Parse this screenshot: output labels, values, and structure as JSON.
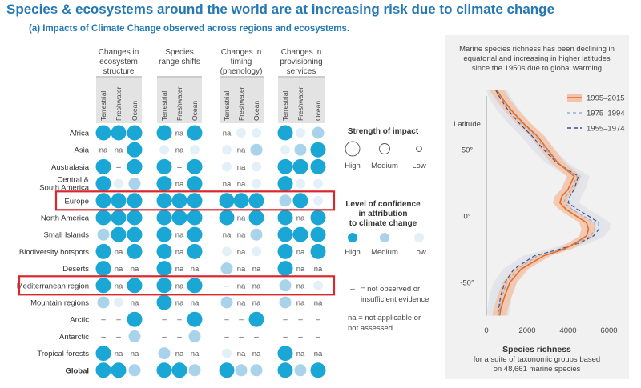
{
  "title": "Species & ecosystems around the world are at increasing risk due to climate change",
  "subtitle": "(a) Impacts of Climate Change observed across regions and ecosystems.",
  "colors": {
    "high": "#1aa7d6",
    "medium": "#a9d3ea",
    "low": "#e4f0f8",
    "title": "#2479b5",
    "highlight": "#d8282e"
  },
  "matrix": {
    "groups": [
      {
        "label_lines": [
          "Changes in",
          "ecosystem",
          "structure"
        ]
      },
      {
        "label_lines": [
          "Species",
          "range shifts"
        ]
      },
      {
        "label_lines": [
          "Changes in",
          "timing",
          "(phenology)"
        ]
      },
      {
        "label_lines": [
          "Changes in",
          "provisioning",
          "services"
        ]
      }
    ],
    "subcolumns": [
      "Terrestrial",
      "Freshwater",
      "Ocean"
    ],
    "na_label": "na",
    "dash_label": "–",
    "rows": [
      {
        "label": [
          "Africa"
        ],
        "cells": [
          "H",
          "H",
          "H",
          "H",
          "na",
          "H",
          "na",
          "L",
          "L",
          "H",
          "L",
          "M"
        ]
      },
      {
        "label": [
          "Asia"
        ],
        "cells": [
          "na",
          "na",
          "H",
          "L",
          "na",
          "L",
          "L",
          "na",
          "M",
          "L",
          "M",
          "H"
        ]
      },
      {
        "label": [
          "Australasia"
        ],
        "cells": [
          "H",
          "-",
          "H",
          "H",
          "-",
          "H",
          "L",
          "na",
          "L",
          "H",
          "H",
          "H"
        ]
      },
      {
        "label": [
          "Central &",
          "South America"
        ],
        "cells": [
          "H",
          "L",
          "M",
          "H",
          "na",
          "H",
          "na",
          "na",
          "L",
          "H",
          "L",
          "L"
        ]
      },
      {
        "label": [
          "Europe"
        ],
        "cells": [
          "H",
          "H",
          "H",
          "H",
          "H",
          "H",
          "H",
          "H",
          "H",
          "M",
          "H",
          "L"
        ]
      },
      {
        "label": [
          "North America"
        ],
        "cells": [
          "H",
          "H",
          "H",
          "H",
          "H",
          "H",
          "H",
          "na",
          "H",
          "H",
          "na",
          "H"
        ]
      },
      {
        "label": [
          "Small Islands"
        ],
        "cells": [
          "M",
          "H",
          "H",
          "H",
          "na",
          "H",
          "na",
          "na",
          "M",
          "H",
          "H",
          "H"
        ]
      },
      {
        "label": [
          "Biodiversity hotspots"
        ],
        "cells": [
          "H",
          "na",
          "H",
          "H",
          "na",
          "H",
          "L",
          "na",
          "L",
          "H",
          "na",
          "H"
        ]
      },
      {
        "label": [
          "Deserts"
        ],
        "cells": [
          "H",
          "na",
          "na",
          "H",
          "na",
          "na",
          "M",
          "na",
          "na",
          "H",
          "na",
          "na"
        ]
      },
      {
        "label": [
          "Mediterranean region"
        ],
        "cells": [
          "H",
          "na",
          "H",
          "H",
          "na",
          "H",
          "-",
          "na",
          "na",
          "M",
          "na",
          "L"
        ]
      },
      {
        "label": [
          "Mountain regions"
        ],
        "cells": [
          "M",
          "L",
          "na",
          "H",
          "na",
          "na",
          "M",
          "na",
          "na",
          "M",
          "na",
          "na"
        ]
      },
      {
        "label": [
          "Arctic"
        ],
        "cells": [
          "-",
          "-",
          "H",
          "-",
          "-",
          "H",
          "-",
          "-",
          "H",
          "-",
          "-",
          "-"
        ]
      },
      {
        "label": [
          "Antarctic"
        ],
        "cells": [
          "-",
          "-",
          "M",
          "-",
          "-",
          "M",
          "-",
          "-",
          "-",
          "-",
          "-",
          "-"
        ]
      },
      {
        "label": [
          "Tropical forests"
        ],
        "cells": [
          "H",
          "na",
          "na",
          "M",
          "na",
          "na",
          "L",
          "na",
          "na",
          "H",
          "na",
          "na"
        ]
      },
      {
        "label": [
          "Global"
        ],
        "bold": true,
        "cells": [
          "H",
          "H",
          "M",
          "H",
          "H",
          "M",
          "H",
          "M",
          "M",
          "H",
          "M",
          "H"
        ]
      }
    ],
    "highlighted_rows": [
      "Europe",
      "Mediterranean region"
    ]
  },
  "legend": {
    "strength_title": "Strength of impact",
    "strength_items": [
      "High",
      "Medium",
      "Low"
    ],
    "confidence_title_lines": [
      "Level of confidence",
      "in attribution",
      "to climate change"
    ],
    "confidence_items": [
      "High",
      "Medium",
      "Low"
    ],
    "dash_note_lines": [
      "= not observed or",
      "insufficient evidence"
    ],
    "na_note_lines": [
      "na = not applicable or",
      "not assessed"
    ]
  },
  "chart_data": {
    "type": "line",
    "title_lines": [
      "Marine species richness has been declining in",
      "equatorial and increasing in higher latitudes",
      "since the 1950s due to global warming"
    ],
    "ylabel": "Latitude",
    "xlabel": "Species richness",
    "xlabel_sub_lines": [
      "for a suite of taxonomic groups based",
      "on 48,661 marine species"
    ],
    "x_ticks": [
      "0",
      "2000",
      "4000",
      "6000"
    ],
    "y_ticks": [
      "50°",
      "0°",
      "-50°"
    ],
    "y_tick_values": [
      50,
      0,
      -50
    ],
    "xlim": [
      0,
      6000
    ],
    "ylim": [
      -75,
      95
    ],
    "latitudes": [
      95,
      88,
      80,
      70,
      60,
      50,
      40,
      30,
      20,
      15,
      10,
      5,
      0,
      -5,
      -10,
      -15,
      -20,
      -25,
      -30,
      -40,
      -50,
      -60,
      -70,
      -75
    ],
    "series": [
      {
        "name": "1995–2015",
        "color": "#e46b2a",
        "dash": "",
        "values": [
          500,
          800,
          1200,
          1800,
          2500,
          3000,
          3500,
          4300,
          4000,
          3700,
          3600,
          3900,
          4400,
          4900,
          5000,
          4900,
          4400,
          3800,
          2800,
          1700,
          1150,
          900,
          700,
          650
        ]
      },
      {
        "name": "1975–1994",
        "color": "#8fb3c9",
        "dash": "4,3",
        "values": [
          500,
          750,
          1150,
          1700,
          2400,
          2900,
          3500,
          4450,
          4150,
          3900,
          3800,
          4200,
          4750,
          5300,
          5300,
          5100,
          4500,
          3700,
          2500,
          1500,
          1000,
          780,
          650,
          600
        ]
      },
      {
        "name": "1955–1974",
        "color": "#3d4f8f",
        "dash": "5,3",
        "values": [
          450,
          700,
          1050,
          1600,
          2250,
          2800,
          3450,
          4500,
          4300,
          4100,
          4000,
          4450,
          5000,
          5500,
          5500,
          5250,
          4600,
          3600,
          2350,
          1350,
          900,
          700,
          600,
          550
        ]
      }
    ]
  }
}
